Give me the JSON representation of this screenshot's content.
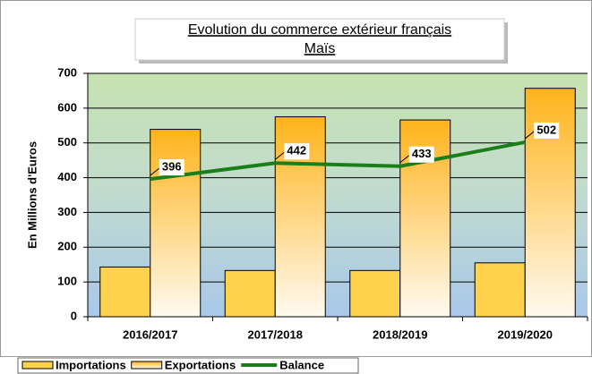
{
  "chart_data": {
    "type": "bar",
    "title": "Evolution du commerce extérieur français",
    "subtitle": "Maïs",
    "y_label": "En Millions d'Euros",
    "categories": [
      "2016/2017",
      "2017/2018",
      "2018/2019",
      "2019/2020"
    ],
    "series": [
      {
        "name": "Importations",
        "color": "#ffd24d",
        "values": [
          143,
          133,
          133,
          155
        ]
      },
      {
        "name": "Exportations",
        "color": "#ffb31a",
        "values": [
          539,
          575,
          566,
          657
        ]
      },
      {
        "name": "Balance",
        "type": "line",
        "color": "#1a7f1a",
        "values": [
          396,
          442,
          433,
          502
        ]
      }
    ],
    "ylim": [
      0,
      700
    ],
    "yticks": [
      0,
      100,
      200,
      300,
      400,
      500,
      600,
      700
    ],
    "grid": true,
    "legend": "bottom-left"
  }
}
